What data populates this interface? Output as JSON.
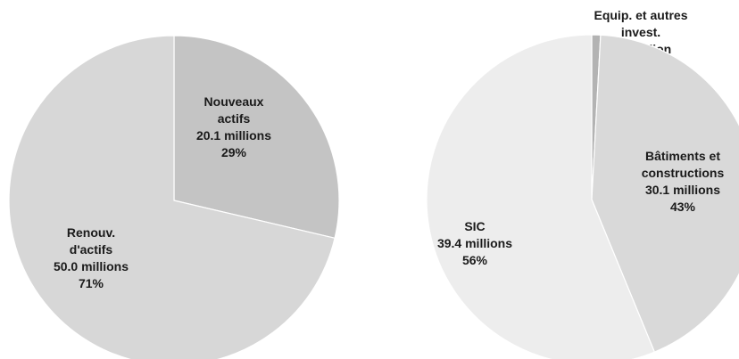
{
  "chart_data": [
    {
      "type": "pie",
      "slices": [
        {
          "label_lines": [
            "Nouveaux",
            "actifs",
            "20.1 millions",
            "29%"
          ],
          "value": 20.1,
          "percent": 29,
          "color": "#c4c4c4"
        },
        {
          "label_lines": [
            "Renouv.",
            "d'actifs",
            "50.0 millions",
            "71%"
          ],
          "value": 50.0,
          "percent": 71,
          "color": "#d7d7d7"
        }
      ]
    },
    {
      "type": "pie",
      "slices": [
        {
          "label_lines": [
            "Equip. et autres",
            "invest.",
            "0.6 million",
            "1%"
          ],
          "value": 0.6,
          "percent": 1,
          "color": "#b3b3b3"
        },
        {
          "label_lines": [
            "Bâtiments et",
            "constructions",
            "30.1 millions",
            "43%"
          ],
          "value": 30.1,
          "percent": 43,
          "color": "#d9d9d9"
        },
        {
          "label_lines": [
            "SIC",
            "39.4 millions",
            "56%"
          ],
          "value": 39.4,
          "percent": 56,
          "color": "#ededed"
        }
      ]
    }
  ]
}
